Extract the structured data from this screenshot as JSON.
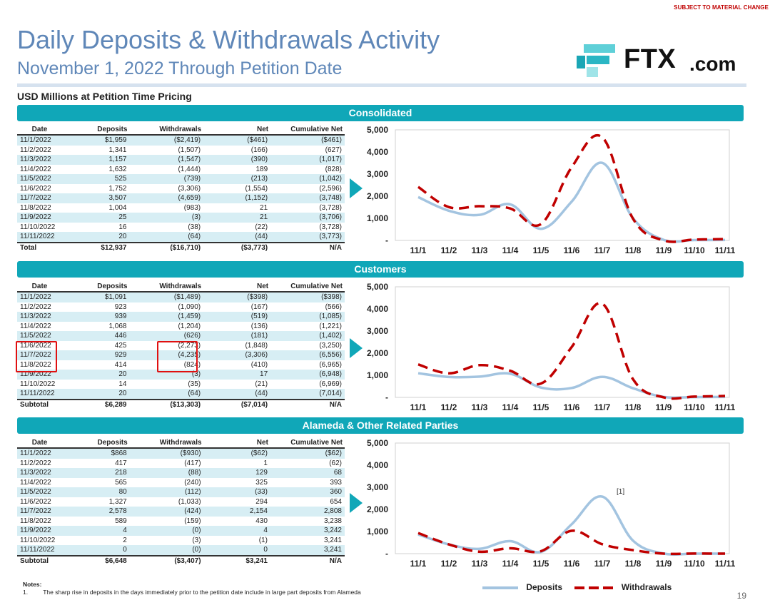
{
  "header": {
    "disclaimer": "SUBJECT TO MATERIAL CHANGE",
    "title": "Daily Deposits & Withdrawals Activity",
    "subtitle": "November 1, 2022 Through Petition Date",
    "units": "USD Millions at Petition Time Pricing",
    "logo_text": "FTX",
    "logo_suffix": ".com"
  },
  "columns": [
    "Date",
    "Deposits",
    "Withdrawals",
    "Net",
    "Cumulative Net"
  ],
  "sections": [
    {
      "band": "Consolidated",
      "rows": [
        [
          "11/1/2022",
          "$1,959",
          "($2,419)",
          "($461)",
          "($461)"
        ],
        [
          "11/2/2022",
          "1,341",
          "(1,507)",
          "(166)",
          "(627)"
        ],
        [
          "11/3/2022",
          "1,157",
          "(1,547)",
          "(390)",
          "(1,017)"
        ],
        [
          "11/4/2022",
          "1,632",
          "(1,444)",
          "189",
          "(828)"
        ],
        [
          "11/5/2022",
          "525",
          "(739)",
          "(213)",
          "(1,042)"
        ],
        [
          "11/6/2022",
          "1,752",
          "(3,306)",
          "(1,554)",
          "(2,596)"
        ],
        [
          "11/7/2022",
          "3,507",
          "(4,659)",
          "(1,152)",
          "(3,748)"
        ],
        [
          "11/8/2022",
          "1,004",
          "(983)",
          "21",
          "(3,728)"
        ],
        [
          "11/9/2022",
          "25",
          "(3)",
          "21",
          "(3,706)"
        ],
        [
          "11/10/2022",
          "16",
          "(38)",
          "(22)",
          "(3,728)"
        ],
        [
          "11/11/2022",
          "20",
          "(64)",
          "(44)",
          "(3,773)"
        ]
      ],
      "total": [
        "Total",
        "$12,937",
        "($16,710)",
        "($3,773)",
        "N/A"
      ]
    },
    {
      "band": "Customers",
      "rows": [
        [
          "11/1/2022",
          "$1,091",
          "($1,489)",
          "($398)",
          "($398)"
        ],
        [
          "11/2/2022",
          "923",
          "(1,090)",
          "(167)",
          "(566)"
        ],
        [
          "11/3/2022",
          "939",
          "(1,459)",
          "(519)",
          "(1,085)"
        ],
        [
          "11/4/2022",
          "1,068",
          "(1,204)",
          "(136)",
          "(1,221)"
        ],
        [
          "11/5/2022",
          "446",
          "(626)",
          "(181)",
          "(1,402)"
        ],
        [
          "11/6/2022",
          "425",
          "(2,273)",
          "(1,848)",
          "(3,250)"
        ],
        [
          "11/7/2022",
          "929",
          "(4,235)",
          "(3,306)",
          "(6,556)"
        ],
        [
          "11/8/2022",
          "414",
          "(824)",
          "(410)",
          "(6,965)"
        ],
        [
          "11/9/2022",
          "20",
          "(3)",
          "17",
          "(6,948)"
        ],
        [
          "11/10/2022",
          "14",
          "(35)",
          "(21)",
          "(6,969)"
        ],
        [
          "11/11/2022",
          "20",
          "(64)",
          "(44)",
          "(7,014)"
        ]
      ],
      "total": [
        "Subtotal",
        "$6,289",
        "($13,303)",
        "($7,014)",
        "N/A"
      ]
    },
    {
      "band": "Alameda & Other Related Parties",
      "rows": [
        [
          "11/1/2022",
          "$868",
          "($930)",
          "($62)",
          "($62)"
        ],
        [
          "11/2/2022",
          "417",
          "(417)",
          "1",
          "(62)"
        ],
        [
          "11/3/2022",
          "218",
          "(88)",
          "129",
          "68"
        ],
        [
          "11/4/2022",
          "565",
          "(240)",
          "325",
          "393"
        ],
        [
          "11/5/2022",
          "80",
          "(112)",
          "(33)",
          "360"
        ],
        [
          "11/6/2022",
          "1,327",
          "(1,033)",
          "294",
          "654"
        ],
        [
          "11/7/2022",
          "2,578",
          "(424)",
          "2,154",
          "2,808"
        ],
        [
          "11/8/2022",
          "589",
          "(159)",
          "430",
          "3,238"
        ],
        [
          "11/9/2022",
          "4",
          "(0)",
          "4",
          "3,242"
        ],
        [
          "11/10/2022",
          "2",
          "(3)",
          "(1)",
          "3,241"
        ],
        [
          "11/11/2022",
          "0",
          "(0)",
          "0",
          "3,241"
        ]
      ],
      "total": [
        "Subtotal",
        "$6,648",
        "($3,407)",
        "$3,241",
        "N/A"
      ]
    }
  ],
  "chart_data": [
    {
      "type": "line",
      "categories": [
        "11/1",
        "11/2",
        "11/3",
        "11/4",
        "11/5",
        "11/6",
        "11/7",
        "11/8",
        "11/9",
        "11/10",
        "11/11"
      ],
      "yticks": [
        "5,000",
        "4,000",
        "3,000",
        "2,000",
        "1,000",
        "-"
      ],
      "ylim": [
        0,
        5000
      ],
      "series": [
        {
          "name": "Deposits",
          "values": [
            1959,
            1341,
            1157,
            1632,
            525,
            1752,
            3507,
            1004,
            25,
            16,
            20
          ]
        },
        {
          "name": "Withdrawals",
          "values": [
            2419,
            1507,
            1547,
            1444,
            739,
            3306,
            4659,
            983,
            3,
            38,
            64
          ]
        }
      ],
      "annotation": ""
    },
    {
      "type": "line",
      "categories": [
        "11/1",
        "11/2",
        "11/3",
        "11/4",
        "11/5",
        "11/6",
        "11/7",
        "11/8",
        "11/9",
        "11/10",
        "11/11"
      ],
      "yticks": [
        "5,000",
        "4,000",
        "3,000",
        "2,000",
        "1,000",
        "-"
      ],
      "ylim": [
        0,
        5000
      ],
      "series": [
        {
          "name": "Deposits",
          "values": [
            1091,
            923,
            939,
            1068,
            446,
            425,
            929,
            414,
            20,
            14,
            20
          ]
        },
        {
          "name": "Withdrawals",
          "values": [
            1489,
            1090,
            1459,
            1204,
            626,
            2273,
            4235,
            824,
            3,
            35,
            64
          ]
        }
      ],
      "annotation": ""
    },
    {
      "type": "line",
      "categories": [
        "11/1",
        "11/2",
        "11/3",
        "11/4",
        "11/5",
        "11/6",
        "11/7",
        "11/8",
        "11/9",
        "11/10",
        "11/11"
      ],
      "yticks": [
        "5,000",
        "4,000",
        "3,000",
        "2,000",
        "1,000",
        "-"
      ],
      "ylim": [
        0,
        5000
      ],
      "series": [
        {
          "name": "Deposits",
          "values": [
            868,
            417,
            218,
            565,
            80,
            1327,
            2578,
            589,
            4,
            2,
            0
          ]
        },
        {
          "name": "Withdrawals",
          "values": [
            930,
            417,
            88,
            240,
            112,
            1033,
            424,
            159,
            0,
            3,
            0
          ]
        }
      ],
      "annotation": "[1]"
    }
  ],
  "legend": {
    "deposits": "Deposits",
    "withdrawals": "Withdrawals"
  },
  "notes": {
    "heading": "Notes:",
    "item_number": "1.",
    "item_text": "The sharp rise in deposits in the days immediately prior to the petition date include in large part deposits from Alameda"
  },
  "page_number": "19",
  "colors": {
    "deposits": "#a3c4e0",
    "withdrawals": "#c00000",
    "band": "#10a7b8",
    "row_alt": "#d7eef4",
    "highlight": "#e01010"
  }
}
